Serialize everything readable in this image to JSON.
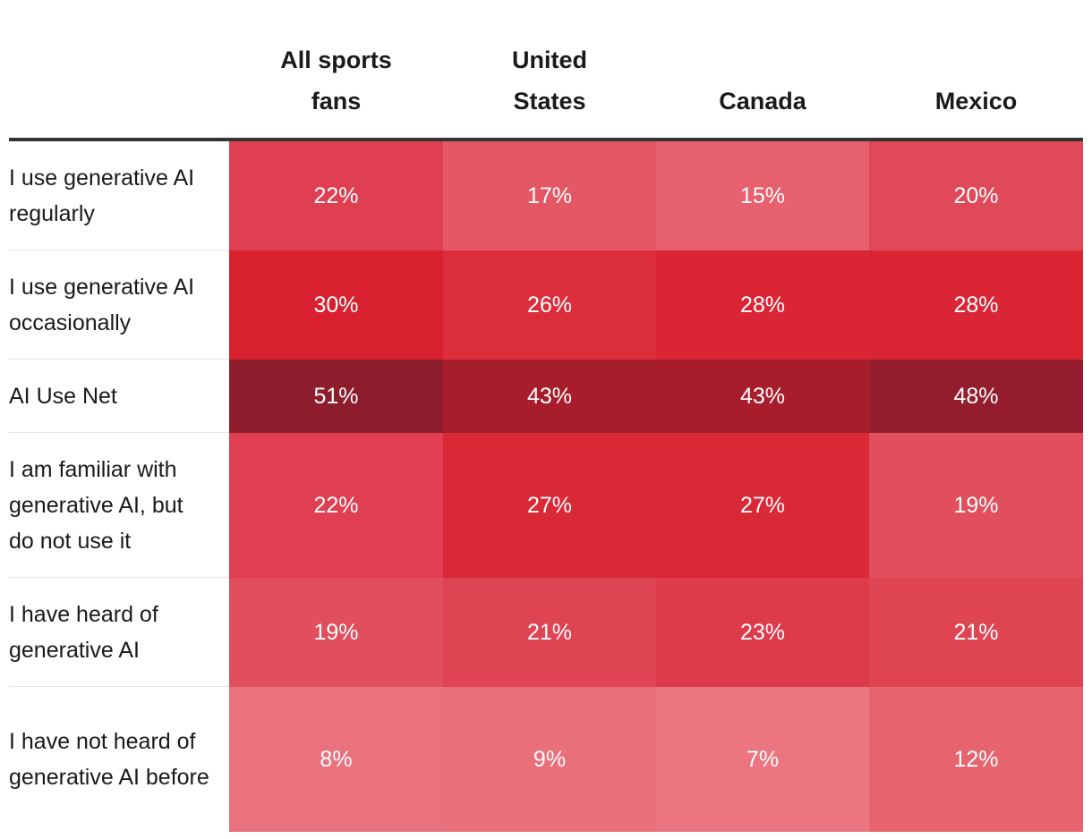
{
  "chart_data": {
    "type": "heatmap",
    "columns": [
      "All sports\nfans",
      "United\nStates",
      "Canada",
      "Mexico"
    ],
    "rows": [
      {
        "label": "I use generative AI regularly",
        "values": [
          "22%",
          "17%",
          "15%",
          "20%"
        ],
        "numeric": [
          22,
          17,
          15,
          20
        ],
        "colors": [
          "#df3f50",
          "#e45866",
          "#e6616d",
          "#e04a58"
        ]
      },
      {
        "label": "I use generative AI occasionally",
        "values": [
          "30%",
          "26%",
          "28%",
          "28%"
        ],
        "numeric": [
          30,
          26,
          28,
          28
        ],
        "colors": [
          "#d8202e",
          "#dc2d3d",
          "#da2534",
          "#da2534"
        ]
      },
      {
        "label": "AI Use Net",
        "values": [
          "51%",
          "43%",
          "43%",
          "48%"
        ],
        "numeric": [
          51,
          43,
          43,
          48
        ],
        "colors": [
          "#8d1d2d",
          "#a81d2c",
          "#a81d2c",
          "#941d2d"
        ]
      },
      {
        "label": "I am familiar with generative AI, but do not use it",
        "values": [
          "22%",
          "27%",
          "27%",
          "19%"
        ],
        "numeric": [
          22,
          27,
          27,
          19
        ],
        "colors": [
          "#df3f50",
          "#d92836",
          "#d92836",
          "#e14e5c"
        ]
      },
      {
        "label": "I have heard of generative AI",
        "values": [
          "19%",
          "21%",
          "23%",
          "21%"
        ],
        "numeric": [
          19,
          21,
          23,
          21
        ],
        "colors": [
          "#e14e5c",
          "#df4453",
          "#dd3a4a",
          "#df4453"
        ]
      },
      {
        "label": "I have not heard of generative AI before",
        "values": [
          "8%",
          "9%",
          "7%",
          "12%"
        ],
        "numeric": [
          8,
          9,
          7,
          12
        ],
        "colors": [
          "#ea727e",
          "#e9707b",
          "#eb7681",
          "#e7646f"
        ]
      }
    ]
  }
}
